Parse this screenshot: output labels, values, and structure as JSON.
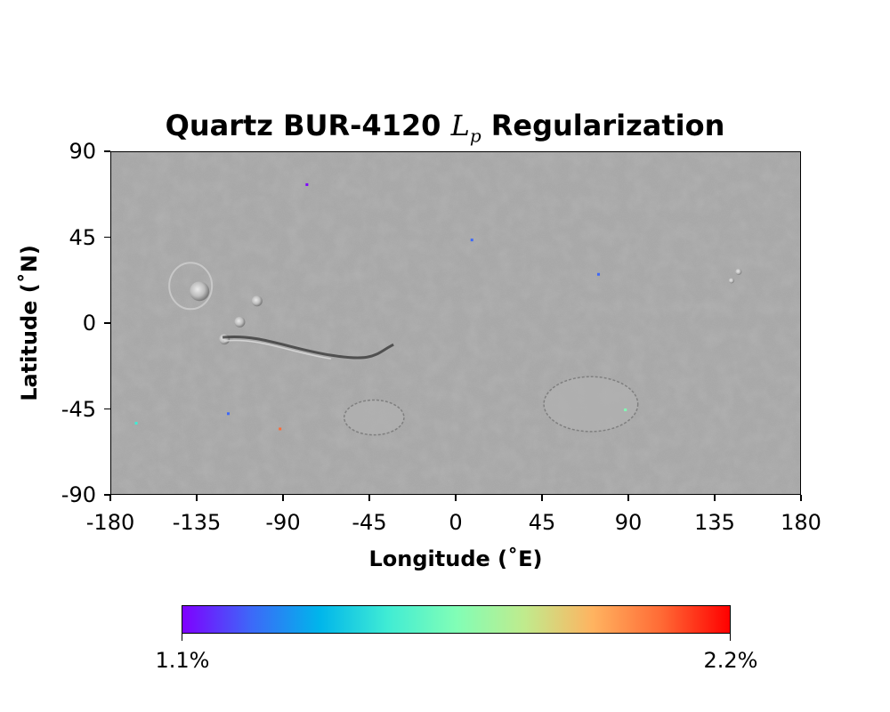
{
  "title": {
    "prefix": "Quartz BUR-4120 ",
    "math_symbol": "L",
    "math_subscript": "p",
    "suffix": " Regularization"
  },
  "axes": {
    "xlabel": "Longitude (˚E)",
    "ylabel": "Latitude (˚N)",
    "xlim": [
      -180,
      180
    ],
    "ylim": [
      -90,
      90
    ],
    "x_ticks": [
      "-180",
      "-135",
      "-90",
      "-45",
      "0",
      "45",
      "90",
      "135",
      "180"
    ],
    "y_ticks": [
      "90",
      "45",
      "0",
      "-45",
      "-90"
    ]
  },
  "basemap": {
    "description_hidden": false,
    "base_color": "#a8a8a8",
    "features": [
      {
        "name": "olympus-mons",
        "lon": -134,
        "lat": 19
      },
      {
        "name": "ascraeus-mons",
        "lon": -104,
        "lat": 12
      },
      {
        "name": "pavonis-mons",
        "lon": -113,
        "lat": 1
      },
      {
        "name": "arsia-mons",
        "lon": -121,
        "lat": -8
      },
      {
        "name": "valles-marineris",
        "lon": -70,
        "lat": -8
      },
      {
        "name": "argyre-basin",
        "lon": -43,
        "lat": -49
      },
      {
        "name": "hellas-basin",
        "lon": 70,
        "lat": -42
      },
      {
        "name": "elysium-mons",
        "lon": 147,
        "lat": 25
      }
    ]
  },
  "colorbar": {
    "min_label": "1.1%",
    "max_label": "2.2%",
    "min": 1.1,
    "max": 2.2,
    "colormap": "rainbow",
    "colors": [
      "#7f00ff",
      "#3d68f8",
      "#00b5eb",
      "#40ecd4",
      "#81feb6",
      "#c0eb8d",
      "#ffb360",
      "#ff6a35",
      "#ff0000"
    ]
  },
  "scatter_points": [
    {
      "lon": -78,
      "lat": 73,
      "value": 1.15
    },
    {
      "lon": 8,
      "lat": 44,
      "value": 1.2
    },
    {
      "lon": -119,
      "lat": -47,
      "value": 1.25
    },
    {
      "lon": -92,
      "lat": -55,
      "value": 2.1
    },
    {
      "lon": 88,
      "lat": -45,
      "value": 1.6
    },
    {
      "lon": 74,
      "lat": 26,
      "value": 1.3
    },
    {
      "lon": -167,
      "lat": -52,
      "value": 1.55
    }
  ]
}
